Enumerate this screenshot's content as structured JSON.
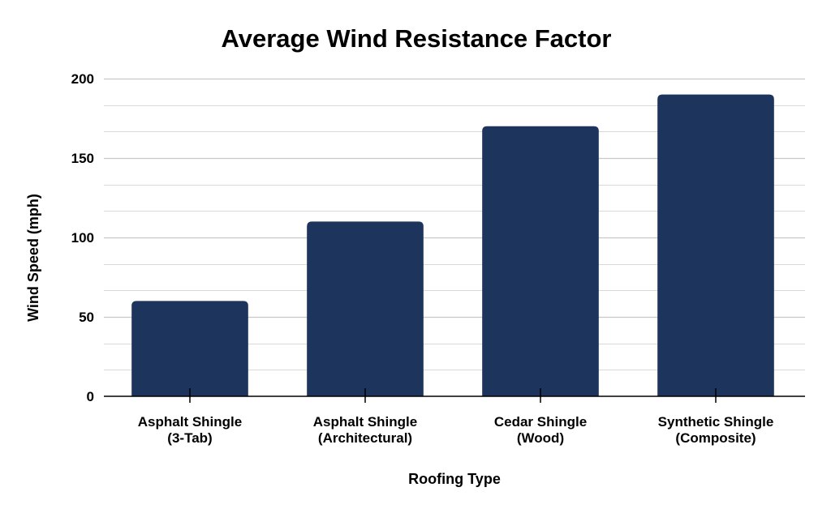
{
  "chart_data": {
    "type": "bar",
    "title": "Average Wind Resistance Factor",
    "xlabel": "Roofing Type",
    "ylabel": "Wind Speed (mph)",
    "categories": [
      [
        "Asphalt Shingle",
        "(3-Tab)"
      ],
      [
        "Asphalt Shingle",
        "(Architectural)"
      ],
      [
        "Cedar Shingle",
        "(Wood)"
      ],
      [
        "Synthetic Shingle",
        "(Composite)"
      ]
    ],
    "values": [
      60,
      110,
      170,
      190
    ],
    "ylim": [
      0,
      200
    ],
    "yticks": [
      0,
      50,
      100,
      150,
      200
    ],
    "minor_grid_step": 16.667,
    "grid": true,
    "legend": "none",
    "bar_color": "#1d355c",
    "grid_color": "#d9d9d9",
    "axis_color": "#000000"
  }
}
